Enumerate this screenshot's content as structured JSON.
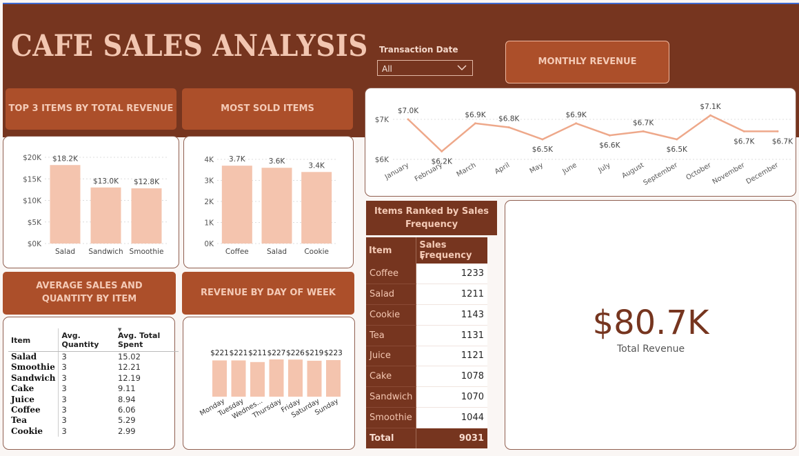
{
  "title": "CAFE SALES ANALYSIS",
  "slicer": {
    "label": "Transaction Date",
    "value": "All",
    "icon": "chevron-down-icon"
  },
  "headers": {
    "top3": "TOP 3 ITEMS BY TOTAL REVENUE",
    "most_sold": "MOST SOLD ITEMS",
    "monthly": "MONTHLY REVENUE",
    "avg": "AVERAGE SALES AND QUANTITY BY ITEM",
    "day_of_week": "REVENUE BY DAY OF WEEK"
  },
  "colors": {
    "banner": "#76351f",
    "header": "#ac4f2a",
    "bar": "#f4c4ae",
    "line": "#eea88a",
    "kpi": "#76351f"
  },
  "avg_table": {
    "columns": [
      "Item",
      "Avg. Quantity",
      "Avg. Total Spent"
    ],
    "sort_icon": "sort-desc-icon",
    "rows": [
      [
        "Salad",
        "3",
        "15.02"
      ],
      [
        "Smoothie",
        "3",
        "12.21"
      ],
      [
        "Sandwich",
        "3",
        "12.19"
      ],
      [
        "Cake",
        "3",
        "9.11"
      ],
      [
        "Juice",
        "3",
        "8.94"
      ],
      [
        "Coffee",
        "3",
        "6.06"
      ],
      [
        "Tea",
        "3",
        "5.29"
      ],
      [
        "Cookie",
        "3",
        "2.99"
      ]
    ]
  },
  "ranked": {
    "title": "Items Ranked by Sales Frequency",
    "columns": [
      "Item",
      "Sales Frequency"
    ],
    "rows": [
      [
        "Coffee",
        "1233"
      ],
      [
        "Salad",
        "1211"
      ],
      [
        "Cookie",
        "1143"
      ],
      [
        "Tea",
        "1131"
      ],
      [
        "Juice",
        "1121"
      ],
      [
        "Cake",
        "1078"
      ],
      [
        "Sandwich",
        "1070"
      ],
      [
        "Smoothie",
        "1044"
      ]
    ],
    "total_label": "Total",
    "total_value": "9031"
  },
  "kpi": {
    "value": "$80.7K",
    "label": "Total Revenue"
  },
  "chart_data": [
    {
      "id": "top3",
      "type": "bar",
      "categories": [
        "Salad",
        "Sandwich",
        "Smoothie"
      ],
      "values": [
        18.2,
        13.0,
        12.8
      ],
      "data_labels": [
        "$18.2K",
        "$13.0K",
        "$12.8K"
      ],
      "yticks": [
        "$0K",
        "$5K",
        "$10K",
        "$15K",
        "$20K"
      ],
      "ylim": [
        0,
        20
      ],
      "grid": true
    },
    {
      "id": "most_sold",
      "type": "bar",
      "categories": [
        "Coffee",
        "Salad",
        "Cookie"
      ],
      "values": [
        3.7,
        3.6,
        3.4
      ],
      "data_labels": [
        "3.7K",
        "3.6K",
        "3.4K"
      ],
      "yticks": [
        "0K",
        "1K",
        "2K",
        "3K",
        "4K"
      ],
      "ylim": [
        0,
        4
      ],
      "grid": true
    },
    {
      "id": "monthly",
      "type": "line",
      "categories": [
        "January",
        "February",
        "March",
        "April",
        "May",
        "June",
        "July",
        "August",
        "September",
        "October",
        "November",
        "December"
      ],
      "values": [
        7.0,
        6.2,
        6.9,
        6.8,
        6.5,
        6.9,
        6.6,
        6.7,
        6.5,
        7.1,
        6.7,
        6.7
      ],
      "data_labels": [
        "$7.0K",
        "$6.2K",
        "$6.9K",
        "$6.8K",
        "$6.5K",
        "$6.9K",
        "$6.6K",
        "$6.7K",
        "$6.5K",
        "$7.1K",
        "$6.7K",
        "$6.7K"
      ],
      "yticks": [
        "$6K",
        "$7K"
      ],
      "ylim": [
        6,
        7
      ],
      "grid": true
    },
    {
      "id": "day_of_week",
      "type": "bar",
      "categories": [
        "Monday",
        "Tuesday",
        "Wednes...",
        "Thursday",
        "Friday",
        "Saturday",
        "Sunday"
      ],
      "values": [
        221,
        221,
        211,
        227,
        226,
        219,
        223
      ],
      "data_labels": [
        "$221",
        "$221",
        "$211",
        "$227",
        "$226",
        "$219",
        "$223"
      ],
      "grid": false
    }
  ]
}
